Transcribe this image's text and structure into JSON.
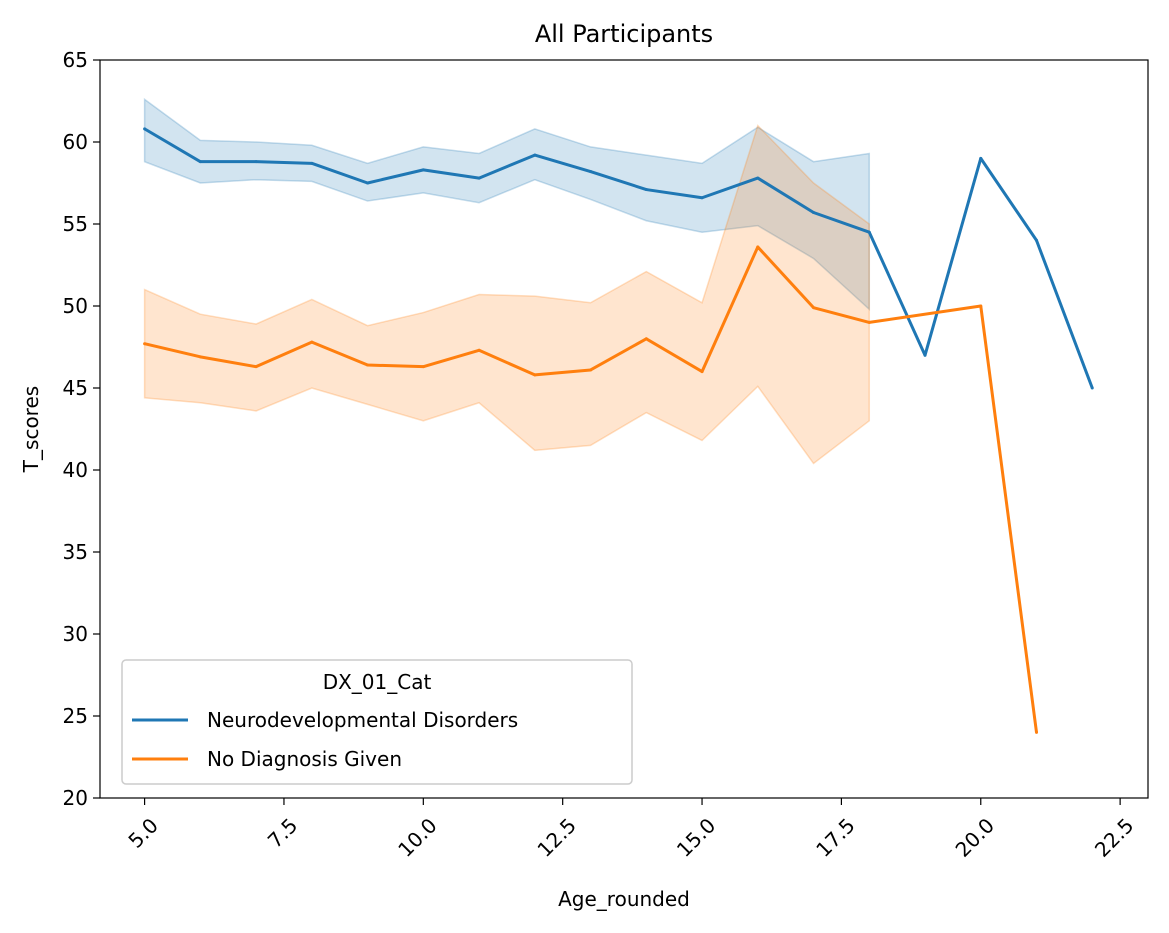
{
  "chart_data": {
    "type": "line",
    "title": "All Participants",
    "xlabel": "Age_rounded",
    "ylabel": "T_scores",
    "xlim": [
      4.2,
      23.0
    ],
    "ylim": [
      20,
      65
    ],
    "xticks": [
      5.0,
      7.5,
      10.0,
      12.5,
      15.0,
      17.5,
      20.0,
      22.5
    ],
    "xtick_labels": [
      "5.0",
      "7.5",
      "10.0",
      "12.5",
      "15.0",
      "17.5",
      "20.0",
      "22.5"
    ],
    "yticks": [
      20,
      25,
      30,
      35,
      40,
      45,
      50,
      55,
      60,
      65
    ],
    "ytick_labels": [
      "20",
      "25",
      "30",
      "35",
      "40",
      "45",
      "50",
      "55",
      "60",
      "65"
    ],
    "grid": false,
    "legend": {
      "title": "DX_01_Cat",
      "position": "lower-left"
    },
    "series": [
      {
        "name": "Neurodevelopmental Disorders",
        "color": "#1f77b4",
        "x": [
          5,
          6,
          7,
          8,
          9,
          10,
          11,
          12,
          13,
          14,
          15,
          16,
          17,
          18,
          19,
          20,
          21,
          22
        ],
        "y": [
          60.8,
          58.8,
          58.8,
          58.7,
          57.5,
          58.3,
          57.8,
          59.2,
          58.2,
          57.1,
          56.6,
          57.8,
          55.7,
          54.5,
          47.0,
          59.0,
          54.0,
          45.0
        ],
        "ci_x": [
          5,
          6,
          7,
          8,
          9,
          10,
          11,
          12,
          13,
          14,
          15,
          16,
          17,
          18
        ],
        "ci_low": [
          58.8,
          57.5,
          57.7,
          57.6,
          56.4,
          56.9,
          56.3,
          57.7,
          56.5,
          55.2,
          54.5,
          54.9,
          52.9,
          49.8
        ],
        "ci_high": [
          62.6,
          60.1,
          60.0,
          59.8,
          58.7,
          59.7,
          59.3,
          60.8,
          59.7,
          59.2,
          58.7,
          60.9,
          58.8,
          59.3
        ]
      },
      {
        "name": "No Diagnosis Given",
        "color": "#ff7f0e",
        "x": [
          5,
          6,
          7,
          8,
          9,
          10,
          11,
          12,
          13,
          14,
          15,
          16,
          17,
          18,
          20,
          21
        ],
        "y": [
          47.7,
          46.9,
          46.3,
          47.8,
          46.4,
          46.3,
          47.3,
          45.8,
          46.1,
          48.0,
          46.0,
          53.6,
          49.9,
          49.0,
          50.0,
          24.0
        ],
        "ci_x": [
          5,
          6,
          7,
          8,
          9,
          10,
          11,
          12,
          13,
          14,
          15,
          16,
          17,
          18
        ],
        "ci_low": [
          44.4,
          44.1,
          43.6,
          45.0,
          44.0,
          43.0,
          44.1,
          41.2,
          41.5,
          43.5,
          41.8,
          45.1,
          40.4,
          43.0
        ],
        "ci_high": [
          51.0,
          49.5,
          48.9,
          50.4,
          48.8,
          49.6,
          50.7,
          50.6,
          50.2,
          52.1,
          50.2,
          61.0,
          57.5,
          55.0
        ]
      }
    ]
  }
}
